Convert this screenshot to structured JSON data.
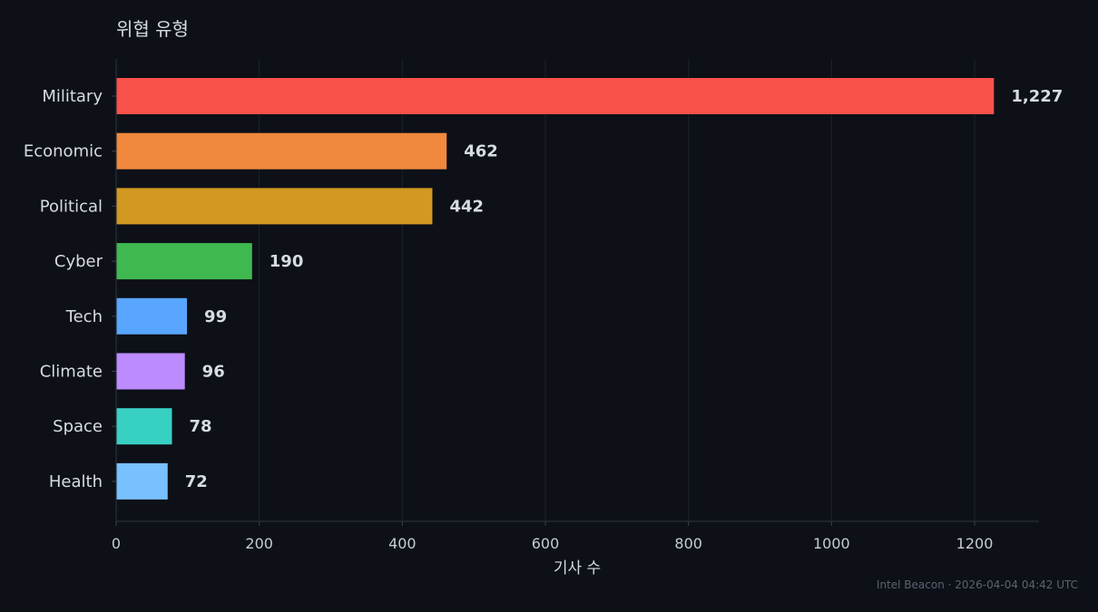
{
  "chart_data": {
    "type": "bar",
    "orientation": "horizontal",
    "title": "위협 유형",
    "xlabel": "기사 수",
    "ylabel": "",
    "categories": [
      "Military",
      "Economic",
      "Political",
      "Cyber",
      "Tech",
      "Climate",
      "Space",
      "Health"
    ],
    "values": [
      1227,
      462,
      442,
      190,
      99,
      96,
      78,
      72
    ],
    "value_labels": [
      "1,227",
      "462",
      "442",
      "190",
      "99",
      "96",
      "78",
      "72"
    ],
    "colors": [
      "#f8514a",
      "#f0883e",
      "#d29922",
      "#3fb950",
      "#58a6ff",
      "#bc8cff",
      "#39d0c4",
      "#79c0ff"
    ],
    "xlim": [
      0,
      1290
    ],
    "xticks": [
      0,
      200,
      400,
      600,
      800,
      1000,
      1200
    ],
    "grid": true
  },
  "footer": "Intel Beacon · 2026-04-04 04:42 UTC"
}
